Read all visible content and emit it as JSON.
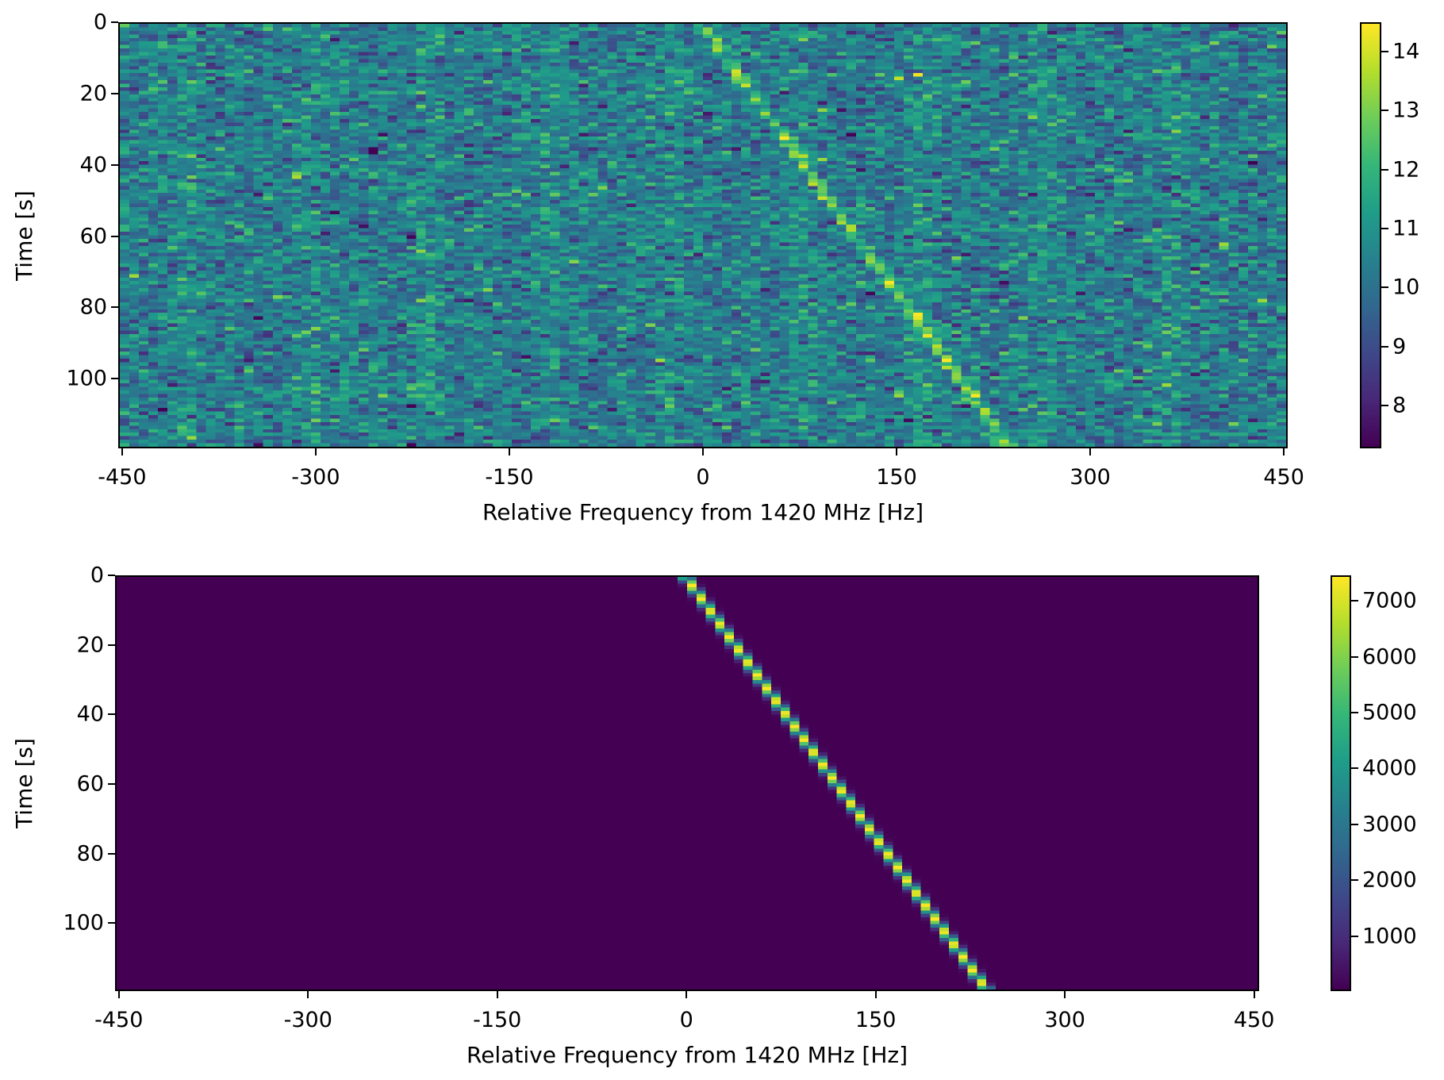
{
  "chart_data": [
    {
      "type": "heatmap",
      "title": "",
      "xlabel": "Relative Frequency from 1420 MHz [Hz]",
      "ylabel": "Time [s]",
      "xlim": [
        -453,
        453
      ],
      "ylim": [
        119.5,
        0
      ],
      "xticks": [
        "-450",
        "-300",
        "-150",
        "0",
        "150",
        "300",
        "450"
      ],
      "yticks": [
        "0",
        "20",
        "40",
        "60",
        "80",
        "100"
      ],
      "time_bins": 120,
      "freq_bin_width_hz": 7.45,
      "colormap": "viridis",
      "clim": [
        7.27,
        14.5
      ],
      "colorbar_ticks": [
        "8",
        "9",
        "10",
        "11",
        "12",
        "13",
        "14"
      ],
      "noise_mean": 10.3,
      "noise_std": 0.9,
      "background_band_freqs_hz": [
        -401,
        -305,
        -212,
        -116,
        -23,
        76,
        169,
        265,
        365
      ],
      "signal": {
        "start_freq_hz": 0,
        "drift_rate_hz_per_s": 2.0,
        "peak_value": 13.5
      }
    },
    {
      "type": "heatmap",
      "title": "",
      "xlabel": "Relative Frequency from 1420 MHz [Hz]",
      "ylabel": "Time [s]",
      "xlim": [
        -453,
        454
      ],
      "ylim": [
        119.5,
        0
      ],
      "xticks": [
        "-450",
        "-300",
        "-150",
        "0",
        "150",
        "300",
        "450"
      ],
      "yticks": [
        "0",
        "20",
        "40",
        "60",
        "80",
        "100"
      ],
      "time_bins": 120,
      "freq_bin_width_hz": 7.45,
      "colormap": "viridis",
      "clim": [
        21,
        7454
      ],
      "colorbar_ticks": [
        "1000",
        "2000",
        "3000",
        "4000",
        "5000",
        "6000",
        "7000"
      ],
      "background_value": 21,
      "signal": {
        "start_freq_hz": 0,
        "drift_rate_hz_per_s": 2.0,
        "peak_value": 7454
      }
    }
  ]
}
